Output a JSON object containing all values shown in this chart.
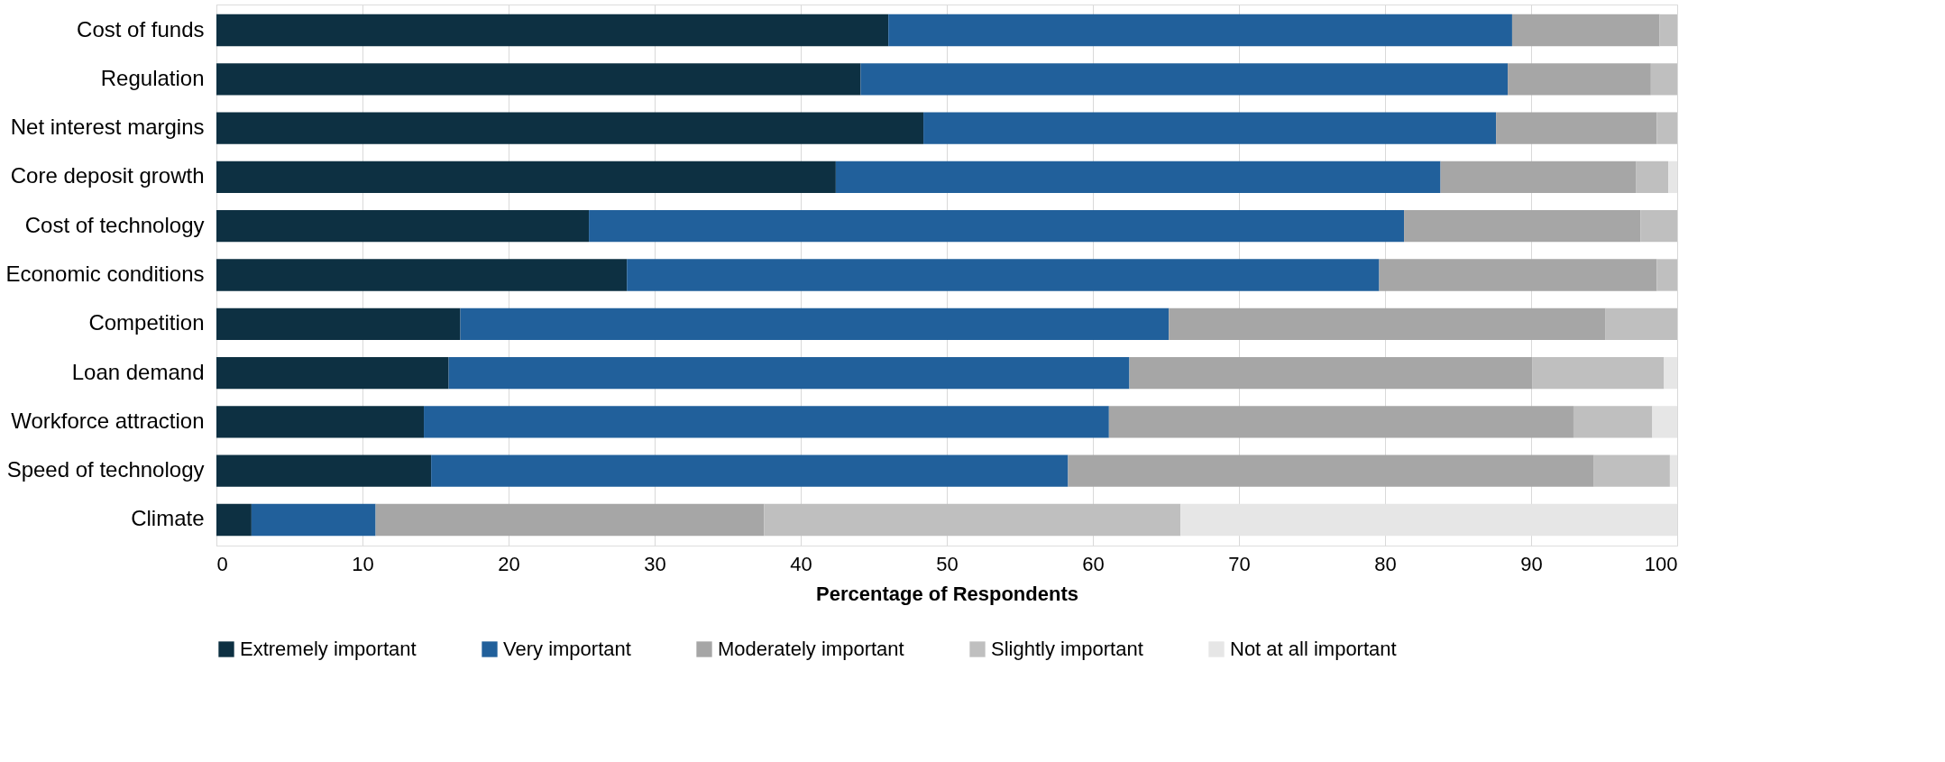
{
  "chart_data": {
    "type": "bar",
    "orientation": "horizontal",
    "stacked": true,
    "xlabel": "Percentage of Respondents",
    "categories": [
      "Cost of funds",
      "Regulation",
      "Net interest margins",
      "Core deposit growth",
      "Cost of technology",
      "Economic conditions",
      "Competition",
      "Loan demand",
      "Workforce attraction",
      "Speed of technology",
      "Climate"
    ],
    "series": [
      {
        "name": "Extremely important",
        "color": "#0d3042",
        "values": [
          46.0,
          44.1,
          48.4,
          42.4,
          25.5,
          28.1,
          16.7,
          15.9,
          14.2,
          14.7,
          2.4
        ]
      },
      {
        "name": "Very important",
        "color": "#21609b",
        "values": [
          42.7,
          44.3,
          39.2,
          41.4,
          55.8,
          51.5,
          48.5,
          46.6,
          46.9,
          43.6,
          8.5
        ]
      },
      {
        "name": "Moderately important",
        "color": "#a6a6a6",
        "values": [
          10.1,
          9.8,
          11.0,
          13.4,
          16.2,
          19.0,
          29.9,
          27.6,
          31.8,
          36.0,
          26.6
        ]
      },
      {
        "name": "Slightly important",
        "color": "#bfbfbf",
        "values": [
          1.2,
          1.8,
          1.4,
          2.2,
          2.5,
          1.4,
          4.9,
          9.0,
          5.4,
          5.2,
          28.5
        ]
      },
      {
        "name": "Not at all important",
        "color": "#e6e6e6",
        "values": [
          0,
          0,
          0,
          0.6,
          0,
          0,
          0,
          0.9,
          1.7,
          0.5,
          34.0
        ]
      }
    ],
    "xlim": [
      0,
      100
    ],
    "xticks": [
      0,
      10,
      20,
      30,
      40,
      50,
      60,
      70,
      80,
      90,
      100
    ],
    "grid": "x",
    "legend": "bottom"
  }
}
